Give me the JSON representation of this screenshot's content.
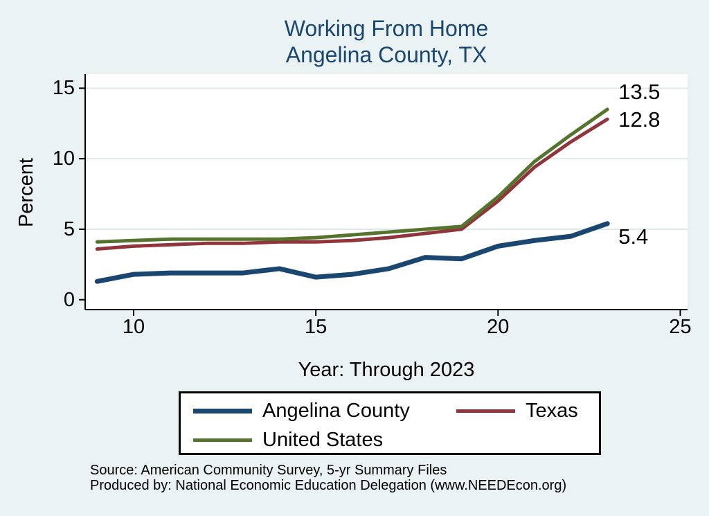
{
  "header": {
    "title_line1": "Working From Home",
    "title_line2": "Angelina County, TX"
  },
  "chart_data": {
    "type": "line",
    "title": "Working From Home — Angelina County, TX",
    "xlabel": "Year: Through 2023",
    "ylabel": "Percent",
    "x": [
      9,
      10,
      11,
      12,
      13,
      14,
      15,
      16,
      17,
      18,
      19,
      20,
      21,
      22,
      23
    ],
    "series": [
      {
        "name": "Angelina County",
        "color": "#1a476f",
        "width": 7,
        "values": [
          1.3,
          1.8,
          1.9,
          1.9,
          1.9,
          2.2,
          1.6,
          1.8,
          2.2,
          3.0,
          2.9,
          3.8,
          4.2,
          4.5,
          5.4
        ],
        "end_label": "5.4"
      },
      {
        "name": "Texas",
        "color": "#90353b",
        "width": 5,
        "values": [
          3.6,
          3.8,
          3.9,
          4.0,
          4.0,
          4.1,
          4.1,
          4.2,
          4.4,
          4.7,
          5.0,
          7.0,
          9.4,
          11.2,
          12.8
        ],
        "end_label": "12.8"
      },
      {
        "name": "United States",
        "color": "#55752f",
        "width": 5,
        "values": [
          4.1,
          4.2,
          4.3,
          4.3,
          4.3,
          4.3,
          4.4,
          4.6,
          4.8,
          5.0,
          5.2,
          7.3,
          9.8,
          11.7,
          13.5
        ],
        "end_label": "13.5"
      }
    ],
    "x_ticks": [
      10,
      15,
      20,
      25
    ],
    "y_ticks": [
      0,
      5,
      10,
      15
    ],
    "xlim": [
      8.67,
      25.2
    ],
    "ylim": [
      -0.7,
      16
    ],
    "grid": "horizontal",
    "legend_position": "bottom"
  },
  "legend": {
    "rows": [
      [
        "Angelina County",
        "Texas"
      ],
      [
        "United States"
      ]
    ]
  },
  "footer": {
    "line1": "Source: American Community Survey, 5-yr Summary Files",
    "line2": "Produced by: National Economic Education Delegation (www.NEEDEcon.org)"
  },
  "colors": {
    "background": "#eaf2f3",
    "plot_background": "#ffffff",
    "grid": "#dde9eb",
    "axis": "#000000",
    "title": "#1a476f",
    "text": "#000000"
  }
}
